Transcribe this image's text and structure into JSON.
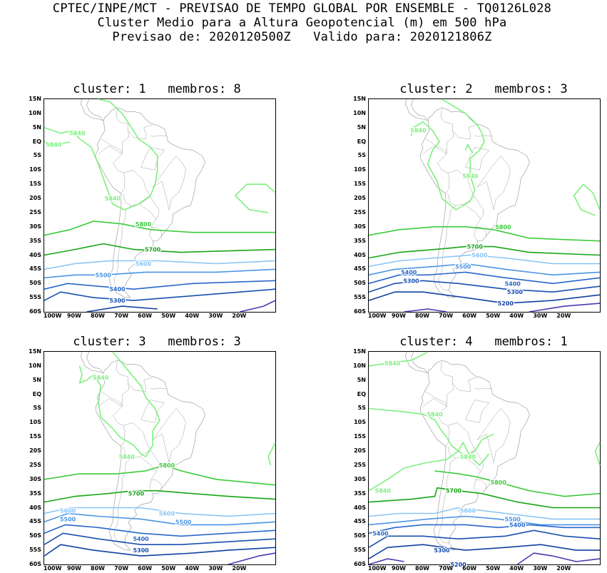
{
  "header": {
    "line1": "CPTEC/INPE/MCT - PREVISAO DE TEMPO GLOBAL POR ENSEMBLE - TQ0126L028",
    "line2": "Cluster Medio para a Altura Geopotencial (m) em 500 hPa",
    "line3": "Previsao de: 2020120500Z   Valido para: 2020121806Z"
  },
  "axes": {
    "lat_labels": [
      "15N",
      "10N",
      "5N",
      "EQ",
      "5S",
      "10S",
      "15S",
      "20S",
      "25S",
      "30S",
      "35S",
      "40S",
      "45S",
      "50S",
      "55S",
      "60S"
    ],
    "lon_labels": [
      "100W",
      "90W",
      "80W",
      "70W",
      "60W",
      "50W",
      "40W",
      "30W",
      "20W"
    ]
  },
  "colors": {
    "c5840": "#7ef07e",
    "c5800": "#3ccc3c",
    "c5700": "#16a616",
    "c5600": "#88c4f4",
    "c5500": "#4c94e6",
    "c5400": "#2868cc",
    "c5300": "#1850b0",
    "c5200": "#1040a0",
    "c5100": "#4a38b0",
    "coast": "#a0a0a0"
  },
  "panels": [
    {
      "title": "cluster: 1   membros: 8",
      "labels": [
        {
          "text": "5840",
          "lat": 3,
          "lon": -89,
          "c": "c5840"
        },
        {
          "text": "5840",
          "lat": -1,
          "lon": -99,
          "c": "c5840"
        },
        {
          "text": "5840",
          "lat": -20,
          "lon": -74,
          "c": "c5840"
        },
        {
          "text": "5800",
          "lat": -29,
          "lon": -61,
          "c": "c5800"
        },
        {
          "text": "5700",
          "lat": -38,
          "lon": -57,
          "c": "c5700"
        },
        {
          "text": "5600",
          "lat": -43,
          "lon": -61,
          "c": "c5600"
        },
        {
          "text": "5500",
          "lat": -47,
          "lon": -78,
          "c": "c5500"
        },
        {
          "text": "5400",
          "lat": -52,
          "lon": -72,
          "c": "c5400"
        },
        {
          "text": "5300",
          "lat": -56,
          "lon": -72,
          "c": "c5300"
        }
      ]
    },
    {
      "title": "cluster: 2   membros: 3",
      "labels": [
        {
          "text": "5840",
          "lat": 4,
          "lon": -82,
          "c": "c5840"
        },
        {
          "text": "5840",
          "lat": -12,
          "lon": -60,
          "c": "c5840"
        },
        {
          "text": "5800",
          "lat": -30,
          "lon": -46,
          "c": "c5800"
        },
        {
          "text": "5700",
          "lat": -37,
          "lon": -58,
          "c": "c5700"
        },
        {
          "text": "5600",
          "lat": -40,
          "lon": -56,
          "c": "c5600"
        },
        {
          "text": "5500",
          "lat": -44,
          "lon": -63,
          "c": "c5500"
        },
        {
          "text": "5400",
          "lat": -46,
          "lon": -86,
          "c": "c5400"
        },
        {
          "text": "5300",
          "lat": -49,
          "lon": -85,
          "c": "c5300"
        },
        {
          "text": "5400",
          "lat": -50,
          "lon": -42,
          "c": "c5400"
        },
        {
          "text": "5300",
          "lat": -53,
          "lon": -41,
          "c": "c5300"
        },
        {
          "text": "5200",
          "lat": -57,
          "lon": -45,
          "c": "c5200"
        }
      ]
    },
    {
      "title": "cluster: 3   membros: 3",
      "labels": [
        {
          "text": "5840",
          "lat": 6,
          "lon": -79,
          "c": "c5840"
        },
        {
          "text": "5840",
          "lat": -22,
          "lon": -68,
          "c": "c5840"
        },
        {
          "text": "5800",
          "lat": -25,
          "lon": -51,
          "c": "c5800"
        },
        {
          "text": "5700",
          "lat": -35,
          "lon": -64,
          "c": "c5700"
        },
        {
          "text": "5600",
          "lat": -41,
          "lon": -93,
          "c": "c5600"
        },
        {
          "text": "5500",
          "lat": -44,
          "lon": -93,
          "c": "c5500"
        },
        {
          "text": "5600",
          "lat": -42,
          "lon": -51,
          "c": "c5600"
        },
        {
          "text": "5500",
          "lat": -45,
          "lon": -44,
          "c": "c5500"
        },
        {
          "text": "5400",
          "lat": -51,
          "lon": -62,
          "c": "c5400"
        },
        {
          "text": "5300",
          "lat": -55,
          "lon": -62,
          "c": "c5300"
        }
      ]
    },
    {
      "title": "cluster: 4   membros: 1",
      "labels": [
        {
          "text": "5840",
          "lat": 11,
          "lon": -93,
          "c": "c5840"
        },
        {
          "text": "5840",
          "lat": -7,
          "lon": -75,
          "c": "c5840"
        },
        {
          "text": "5840",
          "lat": -22,
          "lon": -61,
          "c": "c5840"
        },
        {
          "text": "5840",
          "lat": -34,
          "lon": -97,
          "c": "c5840"
        },
        {
          "text": "5800",
          "lat": -31,
          "lon": -48,
          "c": "c5800"
        },
        {
          "text": "5700",
          "lat": -34,
          "lon": -67,
          "c": "c5700"
        },
        {
          "text": "5600",
          "lat": -41,
          "lon": -61,
          "c": "c5600"
        },
        {
          "text": "5500",
          "lat": -44,
          "lon": -42,
          "c": "c5500"
        },
        {
          "text": "5400",
          "lat": -46,
          "lon": -40,
          "c": "c5400"
        },
        {
          "text": "5400",
          "lat": -49,
          "lon": -98,
          "c": "c5400"
        },
        {
          "text": "5300",
          "lat": -55,
          "lon": -72,
          "c": "c5300"
        },
        {
          "text": "5200",
          "lat": -60,
          "lon": -65,
          "c": "c5200"
        }
      ]
    }
  ]
}
